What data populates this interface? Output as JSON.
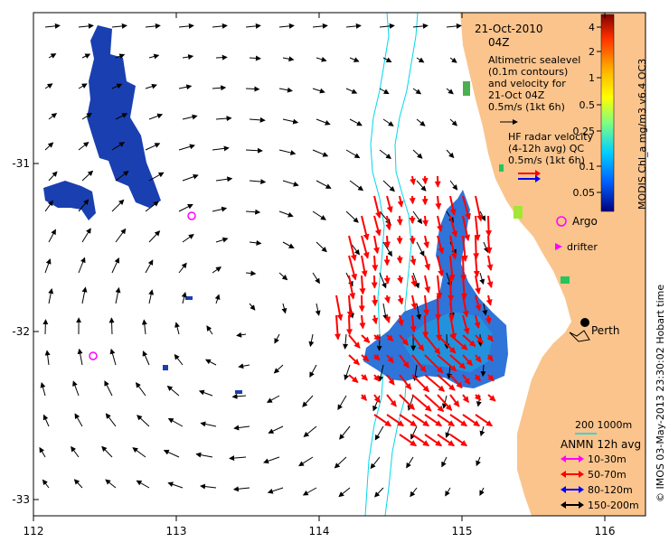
{
  "map": {
    "date_title": "21-Oct-2010",
    "time_title": "04Z",
    "altimetry_lines": [
      "Altimetric sealevel",
      "(0.1m contours)",
      "and velocity for",
      "21-Oct 04Z",
      "0.5m/s (1kt 6h)"
    ],
    "hf_lines": [
      "HF radar velocity",
      "(4-12h avg) QC",
      "0.5m/s (1kt 6h)"
    ],
    "argo_label": "Argo",
    "drifter_label": "drifter",
    "city_label": "Perth",
    "scale_label": "200  1000m",
    "anmn_title": "ANMN 12h avg",
    "anmn_items": [
      {
        "label": "10-30m",
        "color": "#ff00ff"
      },
      {
        "label": "50-70m",
        "color": "#ff0000"
      },
      {
        "label": "80-120m",
        "color": "#0000ff"
      },
      {
        "label": "150-200m",
        "color": "#000000"
      }
    ],
    "colorbar_title": "MODIS Chl_a mg/m3 v6.4 OC3",
    "colorbar_ticks": [
      "4",
      "2",
      "1",
      "0.5",
      "0.25",
      "0.1",
      "0.05"
    ],
    "credit": "© IMOS 03-May-2013 23:30:02 Hobart time",
    "x_ticks": [
      "112",
      "113",
      "114",
      "115",
      "116"
    ],
    "y_ticks": [
      "-31",
      "-32",
      "-33"
    ],
    "colors": {
      "land": "#fac48c",
      "hf_red": "#ff0000",
      "hf_blue": "#0000ff",
      "isobath": "#00d8e8",
      "marker": "#ff00ff"
    }
  }
}
